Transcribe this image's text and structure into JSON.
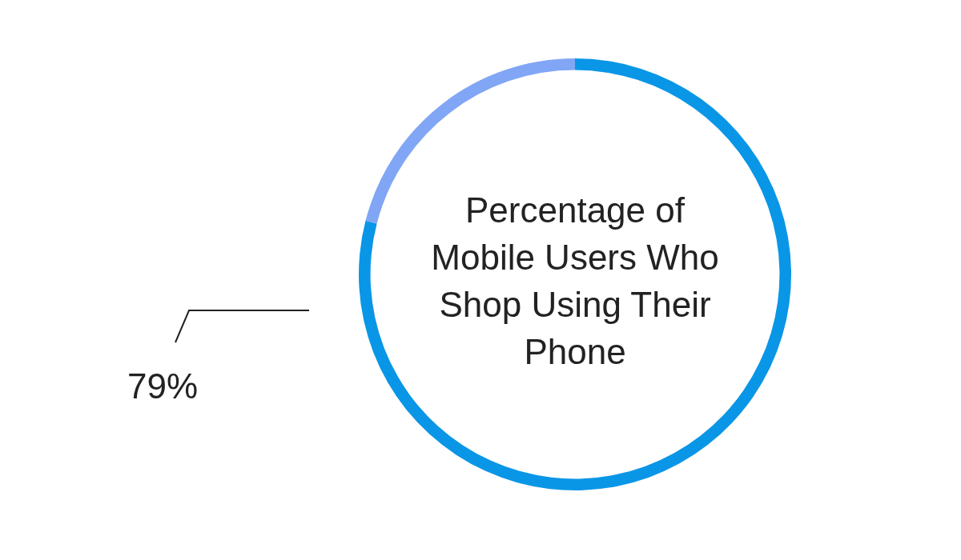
{
  "chart_data": {
    "type": "donut",
    "title": "Percentage of Mobile Users Who Shop Using Their Phone",
    "categories": [
      null,
      null
    ],
    "values": [
      79,
      21
    ],
    "colors": [
      "#0a96e6",
      "#80a6f5"
    ],
    "value_labels": [
      "79%",
      null
    ],
    "legend": false
  }
}
